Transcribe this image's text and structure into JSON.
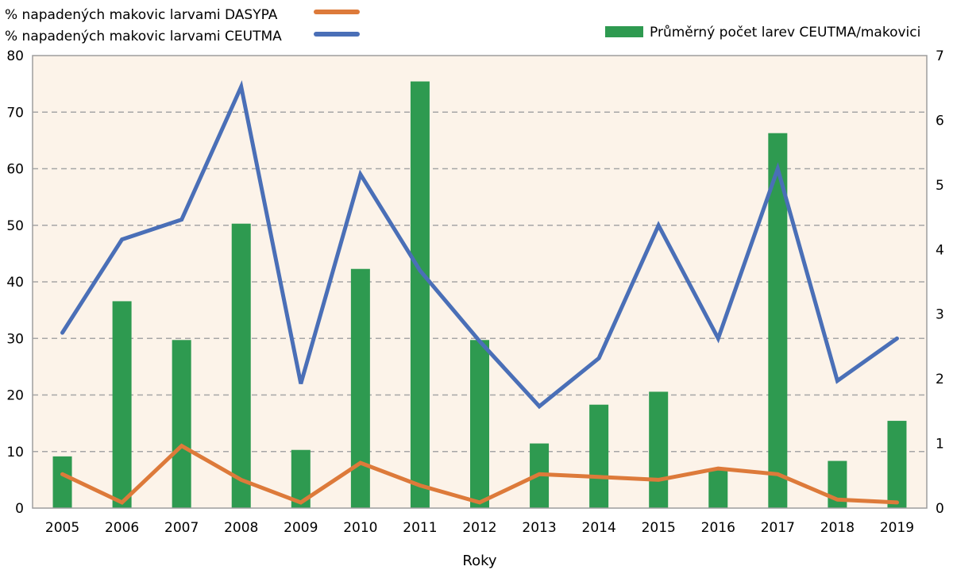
{
  "chart_data": {
    "type": "bar+line",
    "title": "",
    "xlabel": "Roky",
    "ylabel_left": "",
    "ylabel_right": "",
    "categories": [
      "2005",
      "2006",
      "2007",
      "2008",
      "2009",
      "2010",
      "2011",
      "2012",
      "2013",
      "2014",
      "2015",
      "2016",
      "2017",
      "2018",
      "2019"
    ],
    "y_left": {
      "range": [
        0,
        80
      ],
      "ticks": [
        "0",
        "10",
        "20",
        "30",
        "40",
        "50",
        "60",
        "70",
        "80"
      ]
    },
    "y_right": {
      "range": [
        0,
        7
      ],
      "ticks": [
        "0",
        "1",
        "2",
        "3",
        "4",
        "5",
        "6",
        "7"
      ]
    },
    "grid": "horizontal dashed",
    "plot_background": "#fcf3e9",
    "legend": {
      "placement": "top",
      "items": [
        {
          "name": "% napadených makovic larvami DASYPA",
          "type": "line",
          "color": "#dd7a3a"
        },
        {
          "name": "% napadených makovic larvami CEUTMA",
          "type": "line",
          "color": "#4a6fb7"
        },
        {
          "name": "Průměrný počet larev CEUTMA/makovici",
          "type": "bar",
          "color": "#2e9a50"
        }
      ]
    },
    "series": [
      {
        "name": "Průměrný počet larev CEUTMA/makovici",
        "type": "bar",
        "axis": "right",
        "color": "#2e9a50",
        "values": [
          0.8,
          3.2,
          2.6,
          4.4,
          0.9,
          3.7,
          6.6,
          2.6,
          1.0,
          1.6,
          1.8,
          0.6,
          5.8,
          0.73,
          1.35
        ]
      },
      {
        "name": "% napadených makovic larvami CEUTMA",
        "type": "line",
        "axis": "left",
        "color": "#4a6fb7",
        "values": [
          31,
          47.5,
          51,
          74.5,
          22,
          59,
          42,
          29.5,
          18,
          26.5,
          50,
          30,
          60,
          22.5,
          30
        ]
      },
      {
        "name": "% napadených makovic larvami DASYPA",
        "type": "line",
        "axis": "left",
        "color": "#dd7a3a",
        "values": [
          6,
          1,
          11,
          5,
          1,
          8,
          4,
          1,
          6,
          5.5,
          5,
          7,
          6,
          1.5,
          1
        ]
      }
    ]
  }
}
